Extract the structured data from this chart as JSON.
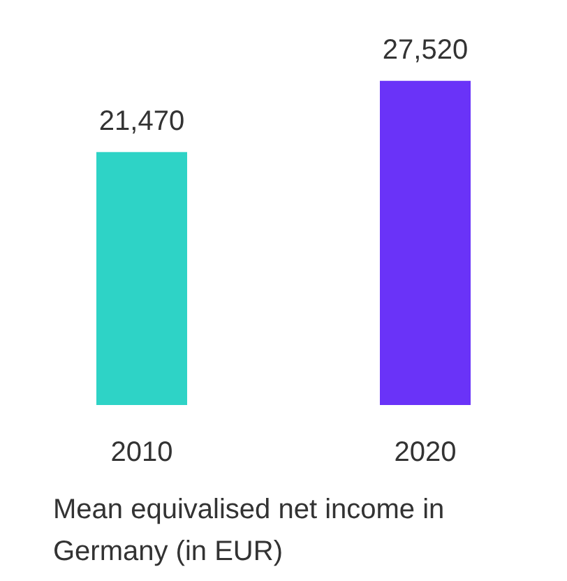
{
  "chart_data": {
    "type": "bar",
    "categories": [
      "2010",
      "2020"
    ],
    "values": [
      21470,
      27520
    ],
    "value_labels": [
      "21,470",
      "27,520"
    ],
    "colors": [
      "#2ed3c6",
      "#6a33f8"
    ],
    "tick_labels": "x",
    "xlabel": "Mean equivalised net income in Germany (in EUR)"
  }
}
